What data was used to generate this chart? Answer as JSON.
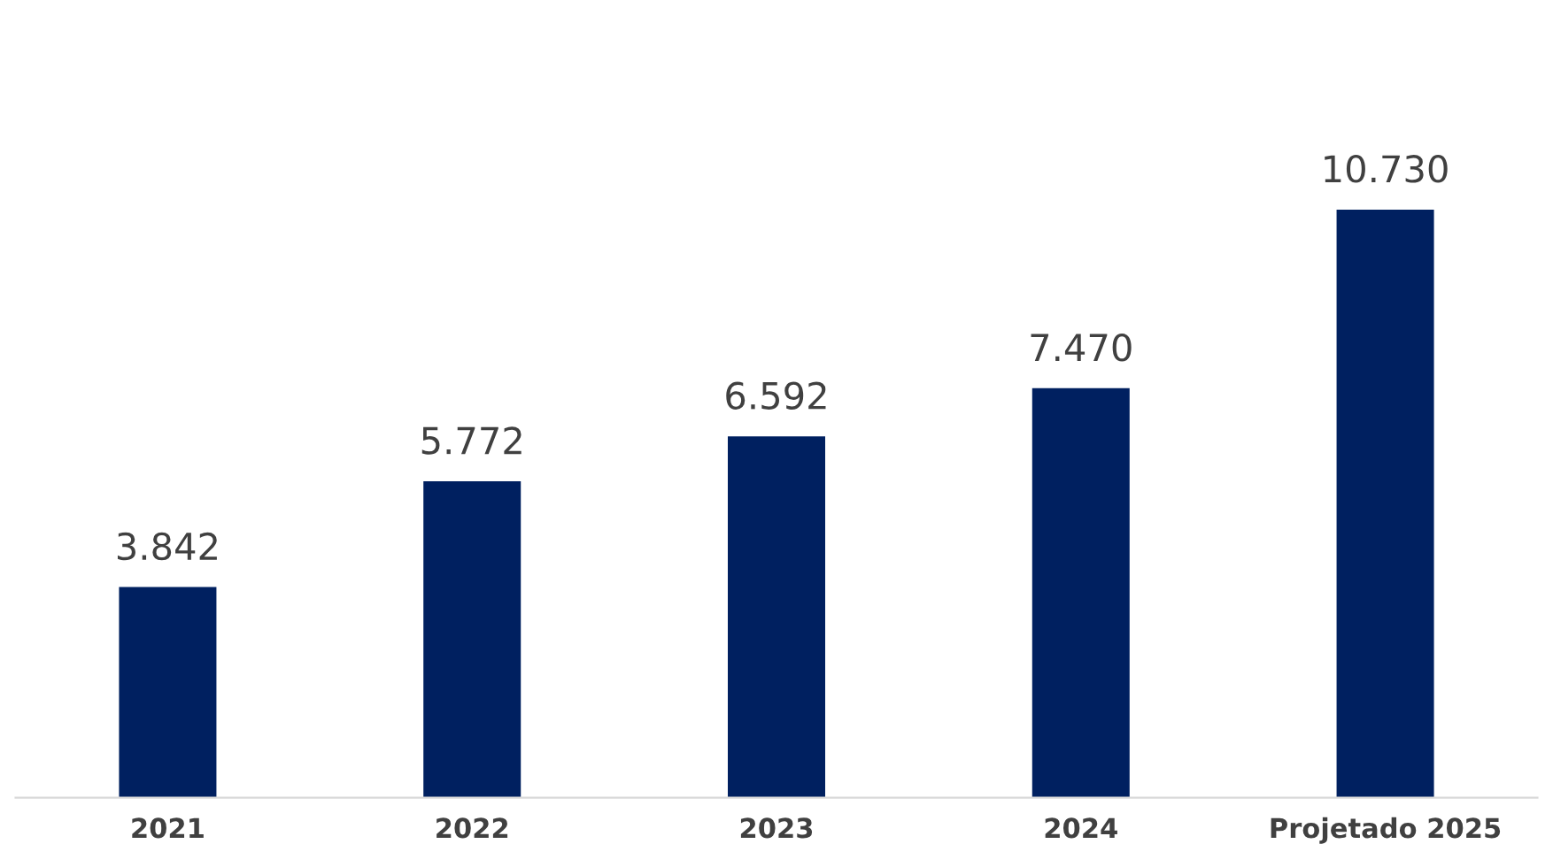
{
  "chart_data": {
    "type": "bar",
    "categories": [
      "2021",
      "2022",
      "2023",
      "2024",
      "Projetado 2025"
    ],
    "values": [
      3842,
      5772,
      6592,
      7470,
      10730
    ],
    "value_labels": [
      "3.842",
      "5.772",
      "6.592",
      "7.470",
      "10.730"
    ],
    "color": "#002060"
  }
}
